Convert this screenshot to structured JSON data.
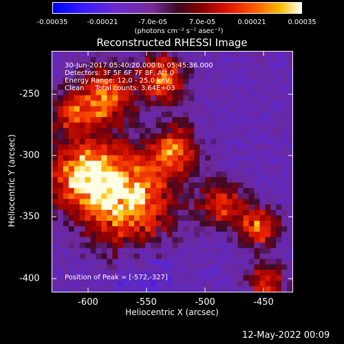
{
  "colorbar": {
    "ticks": [
      "-0.00035",
      "-0.00021",
      "-7.0e-05",
      "7.0e-05",
      "0.00021",
      "0.00035"
    ],
    "unit": "(photons cm⁻² s⁻¹ asec⁻²)"
  },
  "title": "Reconstructed RHESSI Image",
  "annotations": {
    "time": "30-Jun-2017 05:40:20.000 to 05:45:36.000",
    "detectors": "Detectors: 3F 5F 6F 7F 8F, Att 0",
    "energy": "Energy Range: 12.0 - 25.0 keV",
    "clean": "Clean     Total counts: 3.64E+03",
    "peak": "Position of Peak = [-572,-327]"
  },
  "axes": {
    "xlabel": "Heliocentric X (arcsec)",
    "ylabel": "Heliocentric Y (arcsec)",
    "xticks": [
      "-600",
      "-550",
      "-500",
      "-450"
    ],
    "yticks": [
      "-250",
      "-300",
      "-350",
      "-400"
    ]
  },
  "timestamp": "12-May-2022 00:09"
}
